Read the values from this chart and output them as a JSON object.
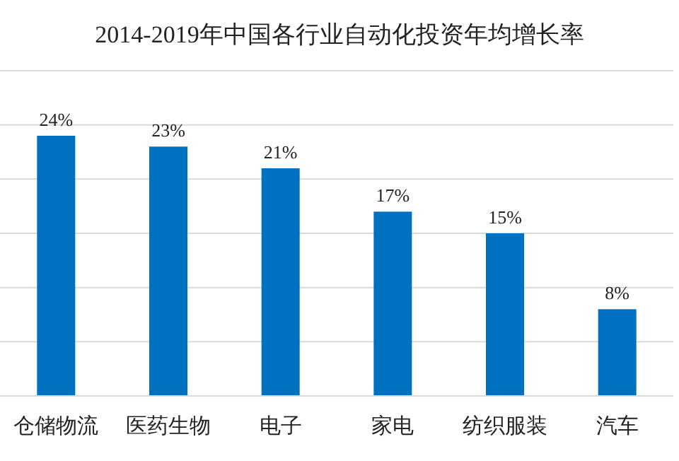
{
  "chart_data": {
    "type": "bar",
    "title": "2014-2019年中国各行业自动化投资年均增长率",
    "categories": [
      "仓储物流",
      "医药生物",
      "电子",
      "家电",
      "纺织服装",
      "汽车"
    ],
    "values": [
      24,
      23,
      21,
      17,
      15,
      8
    ],
    "value_labels": [
      "24%",
      "23%",
      "21%",
      "17%",
      "15%",
      "8%"
    ],
    "color": "#0070c0",
    "ylim": [
      0,
      30
    ],
    "yticks": [
      {
        "value": 0,
        "label": null
      },
      {
        "value": 5,
        "label": null
      },
      {
        "value": 10,
        "label": null
      },
      {
        "value": 15,
        "label": null
      },
      {
        "value": 20,
        "label": null
      },
      {
        "value": 25,
        "label": null
      },
      {
        "value": 30,
        "label": null
      }
    ],
    "grid": "y",
    "tick_labels": "x"
  }
}
